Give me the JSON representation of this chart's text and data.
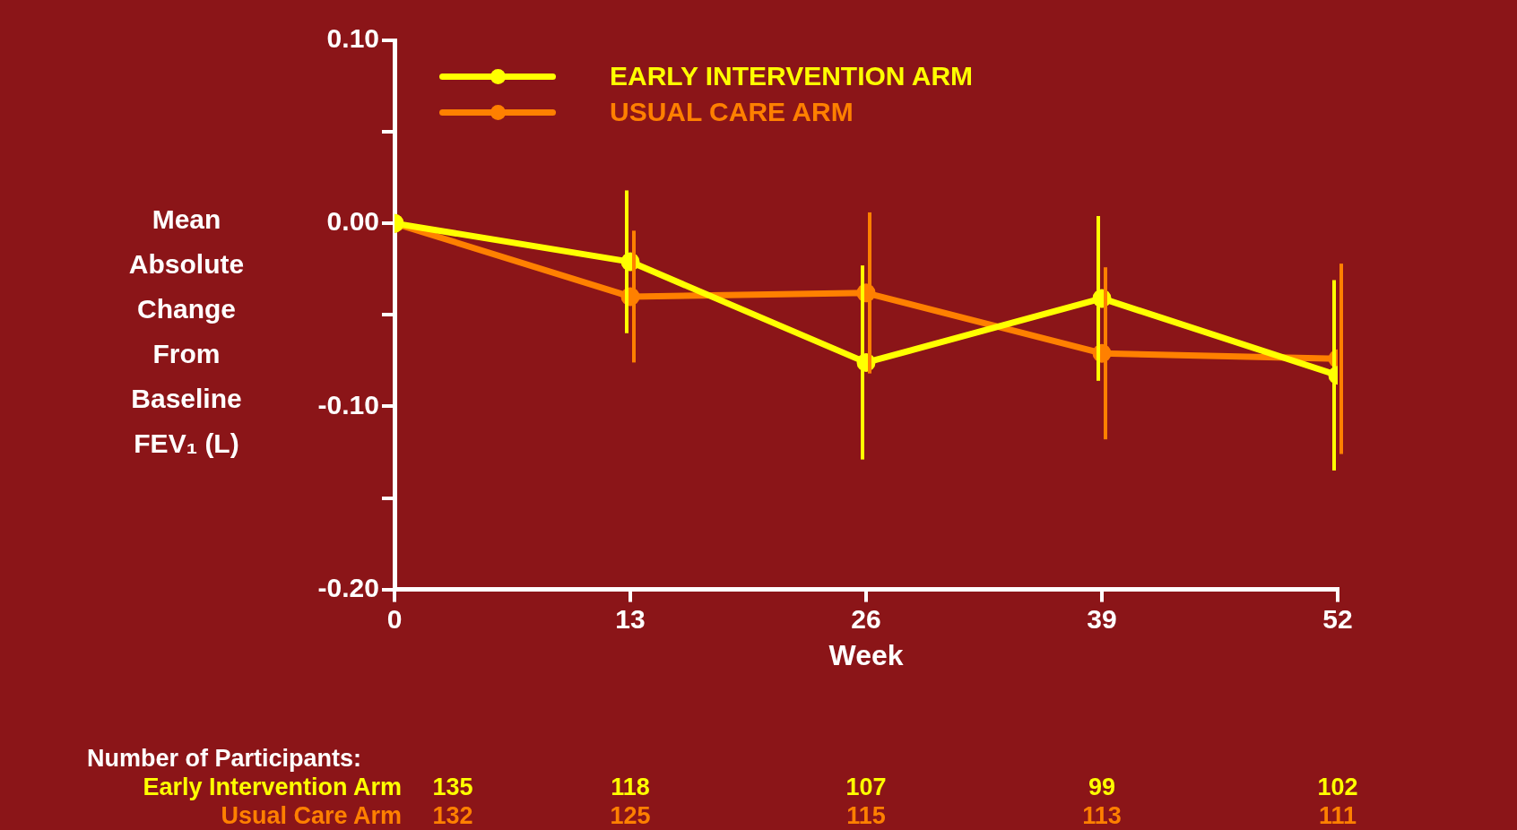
{
  "chart_data": {
    "type": "line",
    "xlabel": "Week",
    "ylabel": "Mean Absolute Change From Baseline FEV₁ (L)",
    "x": [
      0,
      13,
      26,
      39,
      52
    ],
    "xlim": [
      0,
      52
    ],
    "xticks": [
      0,
      13,
      26,
      39,
      52
    ],
    "ylim": [
      -0.2,
      0.1
    ],
    "yticks": [
      {
        "value": 0.1,
        "label": "0.10"
      },
      {
        "value": 0.05,
        "label": null
      },
      {
        "value": 0,
        "label": "0.00"
      },
      {
        "value": -0.05,
        "label": null
      },
      {
        "value": -0.1,
        "label": "-0.10"
      },
      {
        "value": -0.15,
        "label": null
      },
      {
        "value": -0.2,
        "label": "-0.20"
      }
    ],
    "series": [
      {
        "name": "EARLY INTERVENTION ARM",
        "color": "#ffff00",
        "values": [
          0,
          -0.021,
          -0.076,
          -0.041,
          -0.083
        ],
        "errors": [
          null,
          0.039,
          0.053,
          0.045,
          0.052
        ]
      },
      {
        "name": "USUAL CARE ARM",
        "color": "#ff8000",
        "values": [
          0,
          -0.04,
          -0.038,
          -0.071,
          -0.074
        ],
        "errors": [
          null,
          0.036,
          0.044,
          0.047,
          0.052
        ]
      }
    ],
    "grid": false,
    "legend": "top left",
    "marker": "circle",
    "line_style": "solid",
    "annotations": [
      "Number of Participants:",
      "Early Intervention Arm",
      "135",
      "118",
      "107",
      "99",
      "102",
      "Usual Care Arm",
      "132",
      "125",
      "115",
      "113",
      "111"
    ]
  }
}
